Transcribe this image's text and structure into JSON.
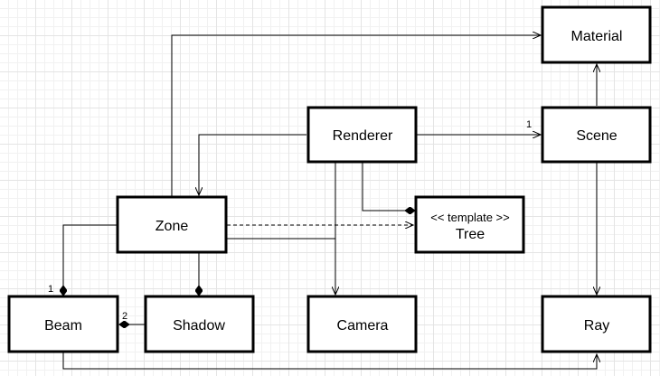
{
  "boxes": {
    "material": "Material",
    "renderer": "Renderer",
    "scene": "Scene",
    "zone": "Zone",
    "tree_stereotype": "<< template >>",
    "tree": "Tree",
    "beam": "Beam",
    "shadow": "Shadow",
    "camera": "Camera",
    "ray": "Ray"
  },
  "multiplicities": {
    "renderer_scene": "1",
    "zone_beam": "1",
    "shadow_beam": "2"
  }
}
